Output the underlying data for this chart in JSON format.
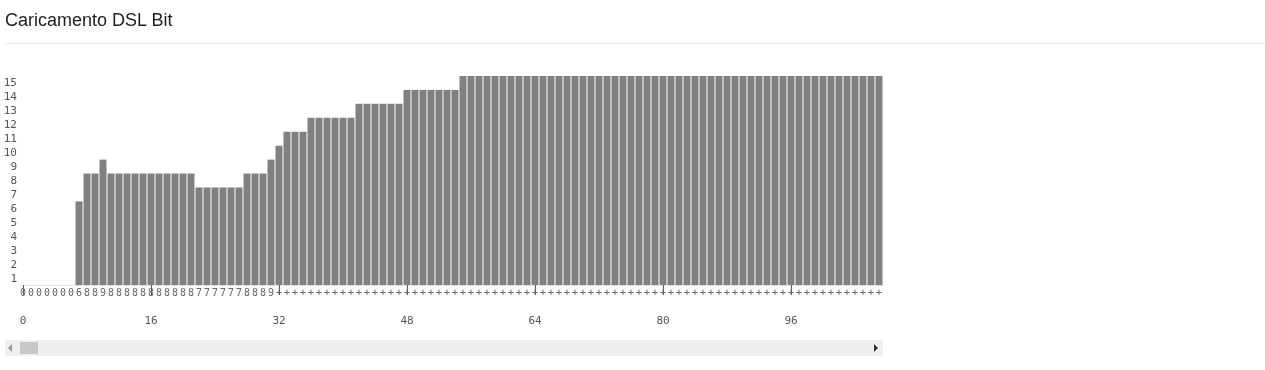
{
  "chart_data": {
    "type": "bar",
    "title": "Caricamento DSL Bit",
    "color": "#808080",
    "x": [
      0,
      1,
      2,
      3,
      4,
      5,
      6,
      7,
      8,
      9,
      10,
      11,
      12,
      13,
      14,
      15,
      16,
      17,
      18,
      19,
      20,
      21,
      22,
      23,
      24,
      25,
      26,
      27,
      28,
      29,
      30,
      31,
      32,
      33,
      34,
      35,
      36,
      37,
      38,
      39,
      40,
      41,
      42,
      43,
      44,
      45,
      46,
      47,
      48,
      49,
      50,
      51,
      52,
      53,
      54,
      55,
      56,
      57,
      58,
      59,
      60,
      61,
      62,
      63,
      64,
      65,
      66,
      67,
      68,
      69,
      70,
      71,
      72,
      73,
      74,
      75,
      76,
      77,
      78,
      79,
      80,
      81,
      82,
      83,
      84,
      85,
      86,
      87,
      88,
      89,
      90,
      91,
      92,
      93,
      94,
      95,
      96,
      97,
      98,
      99,
      100,
      101,
      102,
      103,
      104,
      105,
      106,
      107
    ],
    "values": [
      0,
      0,
      0,
      0,
      0,
      0,
      0,
      6,
      8,
      8,
      9,
      8,
      8,
      8,
      8,
      8,
      8,
      8,
      8,
      8,
      8,
      8,
      7,
      7,
      7,
      7,
      7,
      7,
      8,
      8,
      8,
      9,
      10,
      11,
      11,
      11,
      12,
      12,
      12,
      12,
      12,
      12,
      13,
      13,
      13,
      13,
      13,
      13,
      14,
      14,
      14,
      14,
      14,
      14,
      14,
      15,
      15,
      15,
      15,
      15,
      15,
      15,
      15,
      15,
      15,
      15,
      15,
      15,
      15,
      15,
      15,
      15,
      15,
      15,
      15,
      15,
      15,
      15,
      15,
      15,
      15,
      15,
      15,
      15,
      15,
      15,
      15,
      15,
      15,
      15,
      15,
      15,
      15,
      15,
      15,
      15,
      15,
      15,
      15,
      15,
      15,
      15,
      15,
      15,
      15,
      15,
      15,
      15
    ],
    "value_labels": [
      "0",
      "0",
      "0",
      "0",
      "0",
      "0",
      "0",
      "6",
      "8",
      "8",
      "9",
      "8",
      "8",
      "8",
      "8",
      "8",
      "8",
      "8",
      "8",
      "8",
      "8",
      "8",
      "7",
      "7",
      "7",
      "7",
      "7",
      "7",
      "8",
      "8",
      "8",
      "9",
      "+",
      "+",
      "+",
      "+",
      "+",
      "+",
      "+",
      "+",
      "+",
      "+",
      "+",
      "+",
      "+",
      "+",
      "+",
      "+",
      "+",
      "+",
      "+",
      "+",
      "+",
      "+",
      "+",
      "+",
      "+",
      "+",
      "+",
      "+",
      "+",
      "+",
      "+",
      "+",
      "+",
      "+",
      "+",
      "+",
      "+",
      "+",
      "+",
      "+",
      "+",
      "+",
      "+",
      "+",
      "+",
      "+",
      "+",
      "+",
      "+",
      "+",
      "+",
      "+",
      "+",
      "+",
      "+",
      "+",
      "+",
      "+",
      "+",
      "+",
      "+",
      "+",
      "+",
      "+",
      "+",
      "+",
      "+",
      "+",
      "+",
      "+",
      "+",
      "+",
      "+",
      "+",
      "+",
      "+"
    ],
    "xlim": [
      -0.5,
      107.5
    ],
    "xticks": [
      0,
      16,
      32,
      48,
      64,
      80,
      96
    ],
    "ylim": [
      0,
      15
    ],
    "yticks": [
      {
        "value": 0.5,
        "label": "1"
      },
      {
        "value": 1.5,
        "label": "2"
      },
      {
        "value": 2.5,
        "label": "3"
      },
      {
        "value": 3.5,
        "label": "4"
      },
      {
        "value": 4.5,
        "label": "5"
      },
      {
        "value": 5.5,
        "label": "6"
      },
      {
        "value": 6.5,
        "label": "7"
      },
      {
        "value": 7.5,
        "label": "8"
      },
      {
        "value": 8.5,
        "label": "9"
      },
      {
        "value": 9.5,
        "label": "10"
      },
      {
        "value": 10.5,
        "label": "11"
      },
      {
        "value": 11.5,
        "label": "12"
      },
      {
        "value": 12.5,
        "label": "13"
      },
      {
        "value": 13.5,
        "label": "14"
      },
      {
        "value": 14.5,
        "label": "15"
      }
    ]
  }
}
